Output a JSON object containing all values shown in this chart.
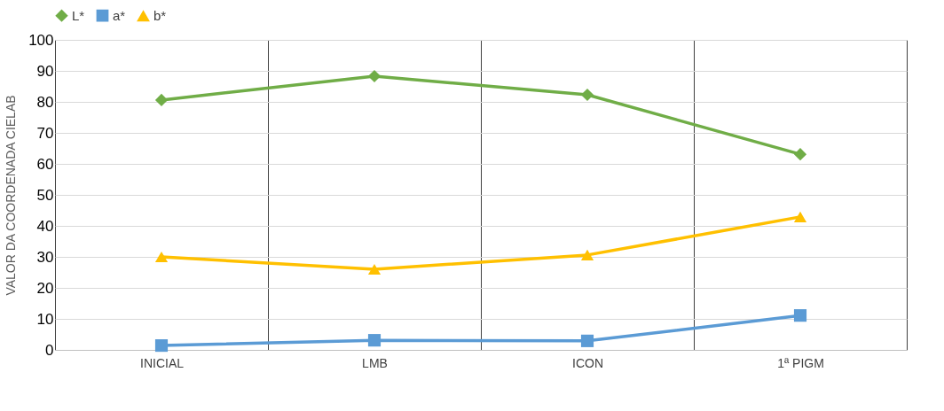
{
  "chart_data": {
    "type": "line",
    "ylabel": "VALOR DA COORDENADA CIELAB",
    "categories": [
      "INICIAL",
      "LMB",
      "ICON",
      "1ª PIGM"
    ],
    "series": [
      {
        "name": "L*",
        "color": "#70ad47",
        "marker": "diamond",
        "values": [
          80.6,
          88.3,
          82.3,
          63.1
        ]
      },
      {
        "name": "a*",
        "color": "#5b9bd5",
        "marker": "square",
        "values": [
          1.4,
          3.1,
          2.9,
          11.1
        ]
      },
      {
        "name": "b*",
        "color": "#ffc000",
        "marker": "triangle",
        "values": [
          30,
          26,
          30.6,
          42.9
        ]
      }
    ],
    "ylim": [
      0,
      100
    ],
    "yticks": [
      0,
      10,
      20,
      30,
      40,
      50,
      60,
      70,
      80,
      90,
      100
    ],
    "grid": true,
    "legend": "top",
    "line_style": "solid"
  }
}
